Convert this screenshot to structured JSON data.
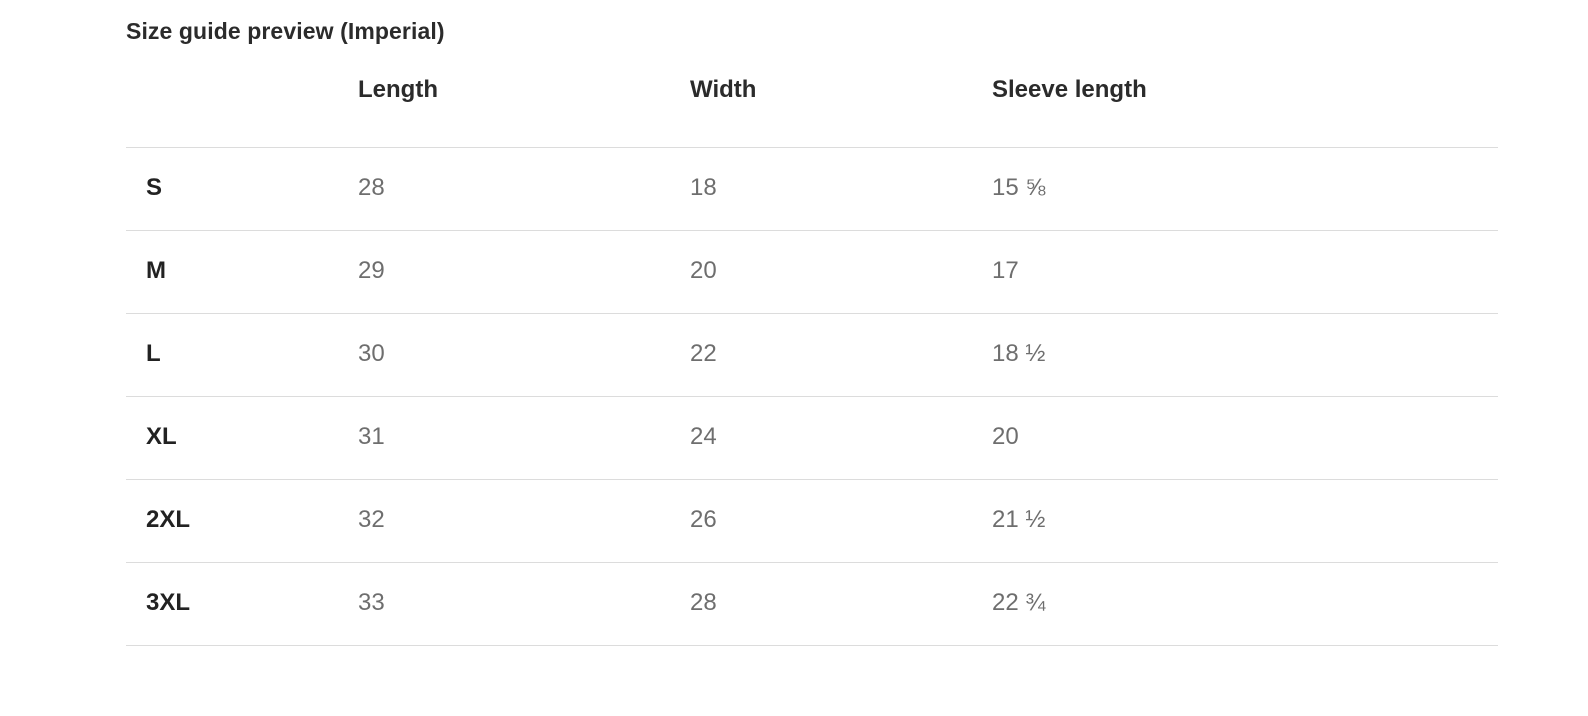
{
  "title": "Size guide preview (Imperial)",
  "table": {
    "headers": [
      "",
      "Length",
      "Width",
      "Sleeve length"
    ],
    "rows": [
      {
        "size": "S",
        "length": "28",
        "width": "18",
        "sleeve": "15 ⅝"
      },
      {
        "size": "M",
        "length": "29",
        "width": "20",
        "sleeve": "17"
      },
      {
        "size": "L",
        "length": "30",
        "width": "22",
        "sleeve": "18 ½"
      },
      {
        "size": "XL",
        "length": "31",
        "width": "24",
        "sleeve": "20"
      },
      {
        "size": "2XL",
        "length": "32",
        "width": "26",
        "sleeve": "21 ½"
      },
      {
        "size": "3XL",
        "length": "33",
        "width": "28",
        "sleeve": "22 ¾"
      }
    ]
  }
}
